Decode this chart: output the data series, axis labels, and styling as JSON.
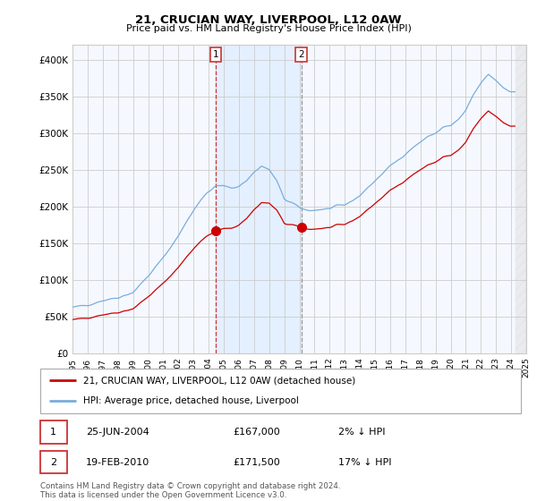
{
  "title": "21, CRUCIAN WAY, LIVERPOOL, L12 0AW",
  "subtitle": "Price paid vs. HM Land Registry's House Price Index (HPI)",
  "legend_label_red": "21, CRUCIAN WAY, LIVERPOOL, L12 0AW (detached house)",
  "legend_label_blue": "HPI: Average price, detached house, Liverpool",
  "annotation1_date": "25-JUN-2004",
  "annotation1_price": "£167,000",
  "annotation1_hpi": "2% ↓ HPI",
  "annotation2_date": "19-FEB-2010",
  "annotation2_price": "£171,500",
  "annotation2_hpi": "17% ↓ HPI",
  "footer": "Contains HM Land Registry data © Crown copyright and database right 2024.\nThis data is licensed under the Open Government Licence v3.0.",
  "ylim": [
    0,
    420000
  ],
  "yticks": [
    0,
    50000,
    100000,
    150000,
    200000,
    250000,
    300000,
    350000,
    400000
  ],
  "sale1_x": 2004.48,
  "sale1_y": 167000,
  "sale2_x": 2010.12,
  "sale2_y": 171500,
  "vline1_x": 2004.48,
  "vline2_x": 2010.12,
  "xlim": [
    1995.0,
    2025.0
  ],
  "xticks": [
    1995,
    1996,
    1997,
    1998,
    1999,
    2000,
    2001,
    2002,
    2003,
    2004,
    2005,
    2006,
    2007,
    2008,
    2009,
    2010,
    2011,
    2012,
    2013,
    2014,
    2015,
    2016,
    2017,
    2018,
    2019,
    2020,
    2021,
    2022,
    2023,
    2024,
    2025
  ],
  "bg_color": "#ffffff",
  "plot_bg_color": "#f5f8ff",
  "grid_color": "#cccccc",
  "red_line_color": "#cc0000",
  "blue_line_color": "#7aaddb",
  "shade_color": "#ddeeff",
  "box_color": "#cc3333",
  "vline1_style": "dashed_red",
  "vline2_style": "solid_gray"
}
